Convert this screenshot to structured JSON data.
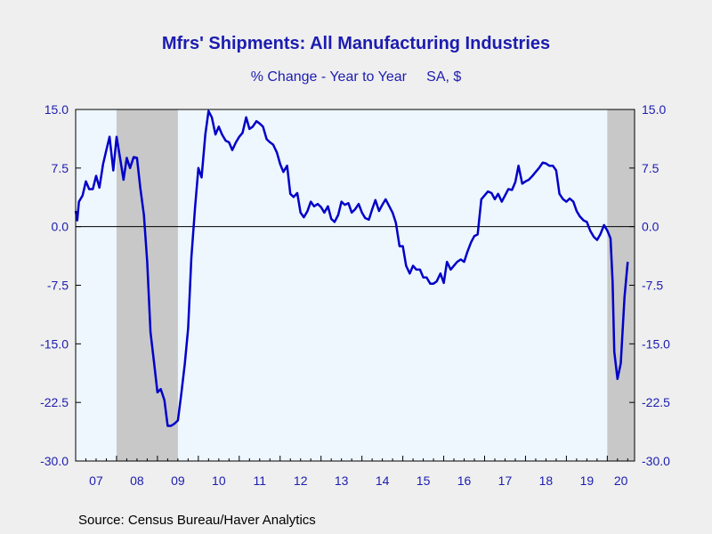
{
  "chart_data": {
    "type": "line",
    "title": "Mfrs' Shipments: All Manufacturing Industries",
    "subtitle": "% Change - Year to Year     SA, $",
    "source": "Source:  Census Bureau/Haver Analytics",
    "ylim": [
      -30.0,
      15.0
    ],
    "yticks": [
      "15.0",
      "7.5",
      "0.0",
      "-7.5",
      "-15.0",
      "-22.5",
      "-30.0"
    ],
    "ytick_values": [
      15.0,
      7.5,
      0.0,
      -7.5,
      -15.0,
      -22.5,
      -30.0
    ],
    "xlim": [
      2007.0,
      2020.667
    ],
    "xtick_labels": [
      "07",
      "08",
      "09",
      "10",
      "11",
      "12",
      "13",
      "14",
      "15",
      "16",
      "17",
      "18",
      "19",
      "20"
    ],
    "recessions": [
      [
        2008.0,
        2009.5
      ],
      [
        2020.0,
        2020.667
      ]
    ],
    "colors": {
      "line": "#0000c8",
      "plot_bg": "#eef6fe",
      "recession": "#c8c8c8",
      "zero_line": "#000000"
    },
    "series": [
      {
        "points": [
          [
            2007.0,
            2.0
          ],
          [
            2007.04,
            0.8
          ],
          [
            2007.08,
            3.2
          ],
          [
            2007.17,
            4.0
          ],
          [
            2007.25,
            5.8
          ],
          [
            2007.33,
            4.8
          ],
          [
            2007.42,
            4.8
          ],
          [
            2007.5,
            6.5
          ],
          [
            2007.58,
            5.0
          ],
          [
            2007.67,
            8.0
          ],
          [
            2007.75,
            9.8
          ],
          [
            2007.83,
            11.5
          ],
          [
            2007.92,
            7.2
          ],
          [
            2008.0,
            11.5
          ],
          [
            2008.08,
            9.0
          ],
          [
            2008.17,
            6.0
          ],
          [
            2008.25,
            8.8
          ],
          [
            2008.33,
            7.5
          ],
          [
            2008.42,
            8.9
          ],
          [
            2008.5,
            8.8
          ],
          [
            2008.58,
            5.0
          ],
          [
            2008.67,
            1.5
          ],
          [
            2008.75,
            -4.5
          ],
          [
            2008.83,
            -13.5
          ],
          [
            2008.92,
            -17.5
          ],
          [
            2009.0,
            -21.2
          ],
          [
            2009.08,
            -20.8
          ],
          [
            2009.17,
            -22.2
          ],
          [
            2009.25,
            -25.5
          ],
          [
            2009.33,
            -25.5
          ],
          [
            2009.42,
            -25.2
          ],
          [
            2009.5,
            -24.8
          ],
          [
            2009.58,
            -21.5
          ],
          [
            2009.67,
            -17.5
          ],
          [
            2009.75,
            -13.0
          ],
          [
            2009.83,
            -4.0
          ],
          [
            2009.92,
            2.5
          ],
          [
            2010.0,
            7.5
          ],
          [
            2010.08,
            6.3
          ],
          [
            2010.17,
            11.8
          ],
          [
            2010.25,
            14.8
          ],
          [
            2010.33,
            14.0
          ],
          [
            2010.42,
            11.8
          ],
          [
            2010.5,
            12.8
          ],
          [
            2010.58,
            11.8
          ],
          [
            2010.67,
            11.0
          ],
          [
            2010.75,
            10.8
          ],
          [
            2010.83,
            9.8
          ],
          [
            2010.92,
            10.8
          ],
          [
            2011.0,
            11.5
          ],
          [
            2011.08,
            12.0
          ],
          [
            2011.17,
            14.0
          ],
          [
            2011.25,
            12.5
          ],
          [
            2011.33,
            12.8
          ],
          [
            2011.42,
            13.5
          ],
          [
            2011.5,
            13.2
          ],
          [
            2011.58,
            12.8
          ],
          [
            2011.67,
            11.2
          ],
          [
            2011.75,
            10.8
          ],
          [
            2011.83,
            10.5
          ],
          [
            2011.92,
            9.5
          ],
          [
            2012.0,
            8.0
          ],
          [
            2012.08,
            7.0
          ],
          [
            2012.17,
            7.8
          ],
          [
            2012.25,
            4.2
          ],
          [
            2012.33,
            3.8
          ],
          [
            2012.42,
            4.3
          ],
          [
            2012.5,
            1.8
          ],
          [
            2012.58,
            1.2
          ],
          [
            2012.67,
            2.0
          ],
          [
            2012.75,
            3.2
          ],
          [
            2012.83,
            2.6
          ],
          [
            2012.92,
            2.9
          ],
          [
            2013.0,
            2.5
          ],
          [
            2013.08,
            1.8
          ],
          [
            2013.17,
            2.6
          ],
          [
            2013.25,
            1.0
          ],
          [
            2013.33,
            0.6
          ],
          [
            2013.42,
            1.5
          ],
          [
            2013.5,
            3.2
          ],
          [
            2013.58,
            2.8
          ],
          [
            2013.67,
            3.0
          ],
          [
            2013.75,
            1.8
          ],
          [
            2013.83,
            2.2
          ],
          [
            2013.92,
            2.9
          ],
          [
            2014.0,
            1.8
          ],
          [
            2014.08,
            1.1
          ],
          [
            2014.17,
            0.9
          ],
          [
            2014.25,
            2.2
          ],
          [
            2014.33,
            3.4
          ],
          [
            2014.42,
            2.0
          ],
          [
            2014.5,
            2.8
          ],
          [
            2014.58,
            3.5
          ],
          [
            2014.67,
            2.6
          ],
          [
            2014.75,
            1.8
          ],
          [
            2014.83,
            0.5
          ],
          [
            2014.92,
            -2.5
          ],
          [
            2015.0,
            -2.5
          ],
          [
            2015.08,
            -5.0
          ],
          [
            2015.17,
            -6.0
          ],
          [
            2015.25,
            -5.0
          ],
          [
            2015.33,
            -5.5
          ],
          [
            2015.42,
            -5.5
          ],
          [
            2015.5,
            -6.5
          ],
          [
            2015.58,
            -6.5
          ],
          [
            2015.67,
            -7.3
          ],
          [
            2015.75,
            -7.3
          ],
          [
            2015.83,
            -7.0
          ],
          [
            2015.92,
            -6.0
          ],
          [
            2016.0,
            -7.2
          ],
          [
            2016.08,
            -4.5
          ],
          [
            2016.17,
            -5.5
          ],
          [
            2016.25,
            -5.0
          ],
          [
            2016.33,
            -4.5
          ],
          [
            2016.42,
            -4.2
          ],
          [
            2016.5,
            -4.5
          ],
          [
            2016.58,
            -3.2
          ],
          [
            2016.67,
            -2.0
          ],
          [
            2016.75,
            -1.2
          ],
          [
            2016.83,
            -1.0
          ],
          [
            2016.92,
            3.5
          ],
          [
            2017.0,
            4.0
          ],
          [
            2017.08,
            4.5
          ],
          [
            2017.17,
            4.3
          ],
          [
            2017.25,
            3.5
          ],
          [
            2017.33,
            4.2
          ],
          [
            2017.42,
            3.2
          ],
          [
            2017.5,
            4.0
          ],
          [
            2017.58,
            4.8
          ],
          [
            2017.67,
            4.7
          ],
          [
            2017.75,
            5.7
          ],
          [
            2017.83,
            7.8
          ],
          [
            2017.92,
            5.5
          ],
          [
            2018.0,
            5.8
          ],
          [
            2018.08,
            6.0
          ],
          [
            2018.17,
            6.5
          ],
          [
            2018.25,
            7.0
          ],
          [
            2018.33,
            7.5
          ],
          [
            2018.42,
            8.2
          ],
          [
            2018.5,
            8.1
          ],
          [
            2018.58,
            7.8
          ],
          [
            2018.67,
            7.8
          ],
          [
            2018.75,
            7.2
          ],
          [
            2018.83,
            4.2
          ],
          [
            2018.92,
            3.5
          ],
          [
            2019.0,
            3.2
          ],
          [
            2019.08,
            3.6
          ],
          [
            2019.17,
            3.2
          ],
          [
            2019.25,
            2.0
          ],
          [
            2019.33,
            1.3
          ],
          [
            2019.42,
            0.8
          ],
          [
            2019.5,
            0.6
          ],
          [
            2019.58,
            -0.5
          ],
          [
            2019.67,
            -1.3
          ],
          [
            2019.75,
            -1.7
          ],
          [
            2019.83,
            -1.0
          ],
          [
            2019.92,
            0.2
          ],
          [
            2020.0,
            -0.5
          ],
          [
            2020.08,
            -1.5
          ],
          [
            2020.13,
            -7.0
          ],
          [
            2020.17,
            -16.0
          ],
          [
            2020.25,
            -19.5
          ],
          [
            2020.33,
            -17.5
          ],
          [
            2020.42,
            -9.0
          ],
          [
            2020.5,
            -4.5
          ]
        ]
      }
    ]
  }
}
